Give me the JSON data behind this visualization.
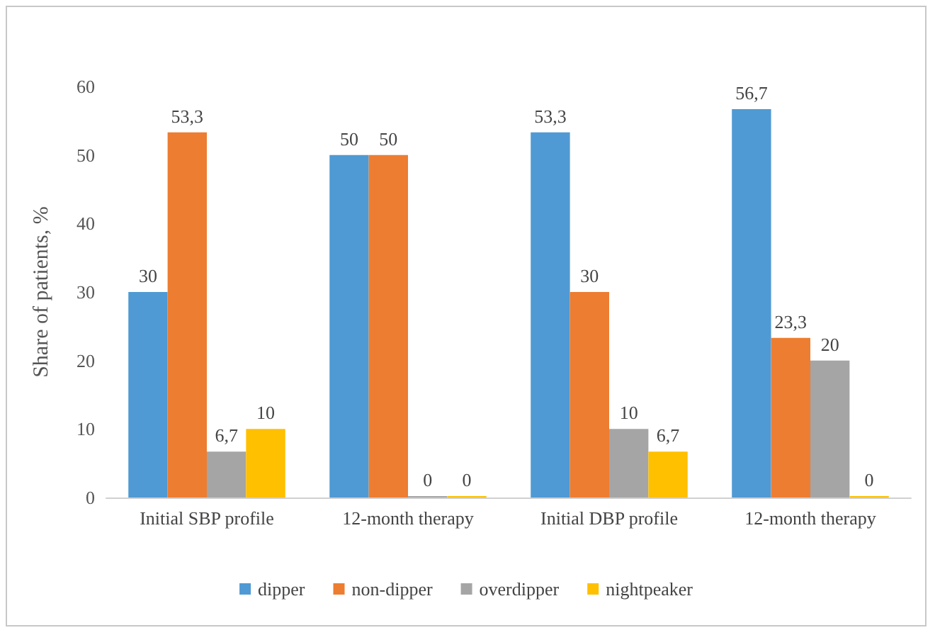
{
  "chart_data": {
    "type": "bar",
    "ylabel": "Share of patients, %",
    "categories": [
      "Initial SBP profile",
      "12-month therapy",
      "Initial DBP profile",
      "12-month therapy"
    ],
    "series": [
      {
        "name": "dipper",
        "color": "#4f9ad4",
        "values": [
          30,
          50,
          53.3,
          56.7
        ],
        "value_labels": [
          "30",
          "50",
          "53,3",
          "56,7"
        ]
      },
      {
        "name": "non-dipper",
        "color": "#ed7d31",
        "values": [
          53.3,
          50,
          30,
          23.3
        ],
        "value_labels": [
          "53,3",
          "50",
          "30",
          "23,3"
        ]
      },
      {
        "name": "overdipper",
        "color": "#a5a5a5",
        "values": [
          6.7,
          0,
          10,
          20
        ],
        "value_labels": [
          "6,7",
          "0",
          "10",
          "20"
        ]
      },
      {
        "name": "nightpeaker",
        "color": "#ffc000",
        "values": [
          10,
          0,
          6.7,
          0
        ],
        "value_labels": [
          "10",
          "0",
          "6,7",
          "0"
        ]
      }
    ],
    "ylim": [
      0,
      60
    ],
    "yticks": [
      0,
      10,
      20,
      30,
      40,
      50,
      60
    ],
    "grid": false,
    "legend": "bottom"
  }
}
